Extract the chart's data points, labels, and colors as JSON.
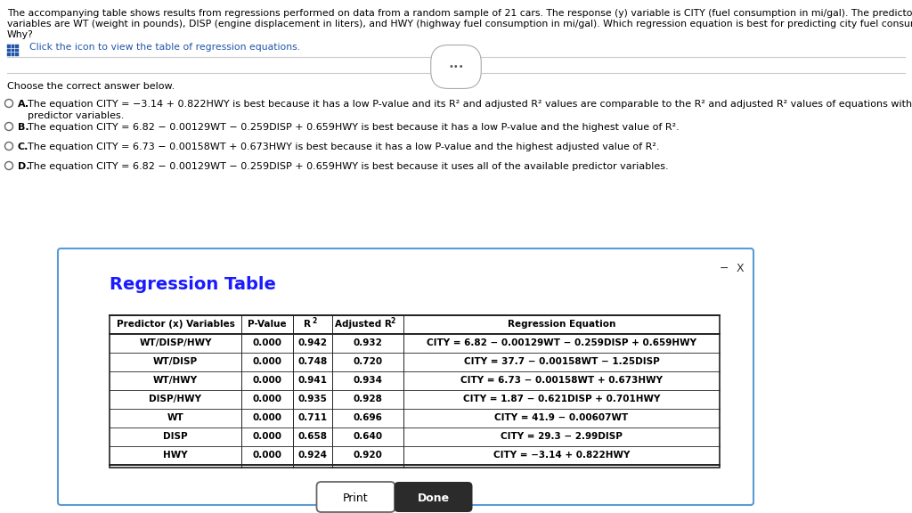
{
  "background_color": "#ffffff",
  "question_line1": "The accompanying table shows results from regressions performed on data from a random sample of 21 cars. The response (y) variable is CITY (fuel consumption in mi/gal). The predictor (x)",
  "question_line2": "variables are WT (weight in pounds), DISP (engine displacement in liters), and HWY (highway fuel consumption in mi/gal). Which regression equation is best for predicting city fuel consumption?",
  "question_line3": "Why?",
  "click_text": "  Click the icon to view the table of regression equations.",
  "choose_text": "Choose the correct answer below.",
  "opt_a_line1": "The equation CITY = −3.14 + 0.822HWY is best because it has a low P-value and its R² and adjusted R² values are comparable to the R² and adjusted R² values of equations with more",
  "opt_a_line2": "predictor variables.",
  "opt_b": "The equation CITY = 6.82 − 0.00129WT − 0.259DISP + 0.659HWY is best because it has a low P-value and the highest value of R².",
  "opt_c": "The equation CITY = 6.73 − 0.00158WT + 0.673HWY is best because it has a low P-value and the highest adjusted value of R².",
  "opt_d": "The equation CITY = 6.82 − 0.00129WT − 0.259DISP + 0.659HWY is best because it uses all of the available predictor variables.",
  "table_title": "Regression Table",
  "table_headers": [
    "Predictor (x) Variables",
    "P-Value",
    "R²",
    "Adjusted R²",
    "Regression Equation"
  ],
  "table_rows": [
    [
      "WT/DISP/HWY",
      "0.000",
      "0.942",
      "0.932",
      "CITY = 6.82 − 0.00129WT − 0.259DISP + 0.659HWY"
    ],
    [
      "WT/DISP",
      "0.000",
      "0.748",
      "0.720",
      "CITY = 37.7 − 0.00158WT − 1.25DISP"
    ],
    [
      "WT/HWY",
      "0.000",
      "0.941",
      "0.934",
      "CITY = 6.73 − 0.00158WT + 0.673HWY"
    ],
    [
      "DISP/HWY",
      "0.000",
      "0.935",
      "0.928",
      "CITY = 1.87 − 0.621DISP + 0.701HWY"
    ],
    [
      "WT",
      "0.000",
      "0.711",
      "0.696",
      "CITY = 41.9 − 0.00607WT"
    ],
    [
      "DISP",
      "0.000",
      "0.658",
      "0.640",
      "CITY = 29.3 − 2.99DISP"
    ],
    [
      "HWY",
      "0.000",
      "0.924",
      "0.920",
      "CITY = −3.14 + 0.822HWY"
    ]
  ],
  "dialog_border": "#5b9bd5",
  "print_label": "Print",
  "done_label": "Done",
  "done_btn_bg": "#2b2b2b"
}
